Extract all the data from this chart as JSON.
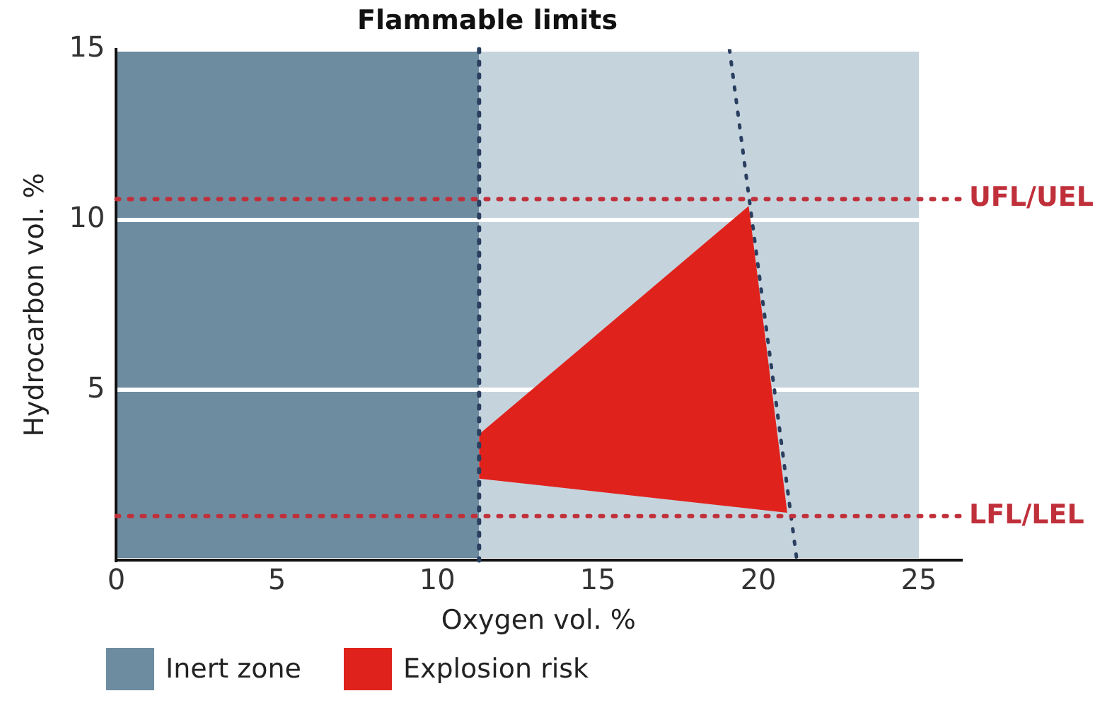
{
  "chart_data": {
    "type": "area",
    "title": "Flammable limits",
    "xlabel": "Oxygen vol. %",
    "ylabel": "Hydrocarbon vol. %",
    "xlim": [
      0,
      26.3
    ],
    "ylim": [
      0,
      15
    ],
    "xticks": [
      0,
      5,
      10,
      15,
      20,
      25
    ],
    "yticks": [
      {
        "value": 0,
        "label": null
      },
      5,
      10,
      15
    ],
    "grid": "y",
    "legend": "bottom",
    "bands": [
      {
        "axis": "x",
        "from": 0,
        "to": 11.3,
        "label": "Inert zone",
        "color": "#6e8ca0"
      },
      {
        "axis": "x",
        "from": 11.3,
        "to": 25,
        "color": "#c5d3dd"
      }
    ],
    "ref_lines": [
      {
        "axis": "y",
        "value": 10.6,
        "label": "UFL/UEL",
        "color": "#c0303a",
        "line_style": "dotted"
      },
      {
        "axis": "y",
        "value": 1.3,
        "label": "LFL/LEL",
        "color": "#c0303a",
        "line_style": "dotted"
      },
      {
        "axis": "x",
        "value": 11.3,
        "color": "#2a3f5f",
        "line_style": "dotted"
      }
    ],
    "series": [
      {
        "name": "Explosion risk",
        "color": "#e0221c",
        "x": [
          11.3,
          19.7,
          20.9,
          11.3
        ],
        "values": [
          3.7,
          10.4,
          1.4,
          2.4
        ]
      },
      {
        "type": "line",
        "color": "#2a3f5f",
        "line_style": "dotted",
        "x": [
          19.1,
          21.2
        ],
        "values": [
          15,
          0
        ]
      }
    ]
  }
}
